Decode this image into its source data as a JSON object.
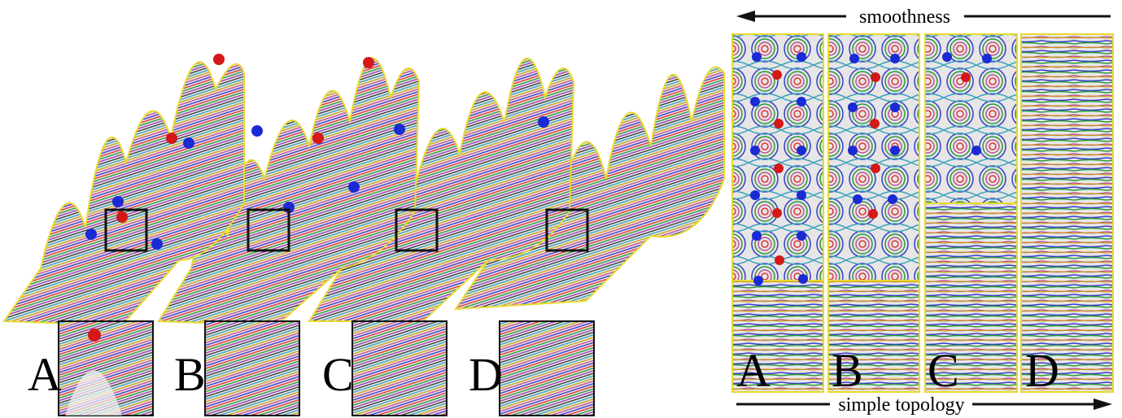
{
  "header": {
    "top_label": "smoothness",
    "bottom_label": "simple topology"
  },
  "insets": [
    {
      "label": "A"
    },
    {
      "label": "B"
    },
    {
      "label": "C"
    },
    {
      "label": "D"
    }
  ],
  "panels": [
    {
      "label": "A"
    },
    {
      "label": "B"
    },
    {
      "label": "C"
    },
    {
      "label": "D"
    }
  ]
}
